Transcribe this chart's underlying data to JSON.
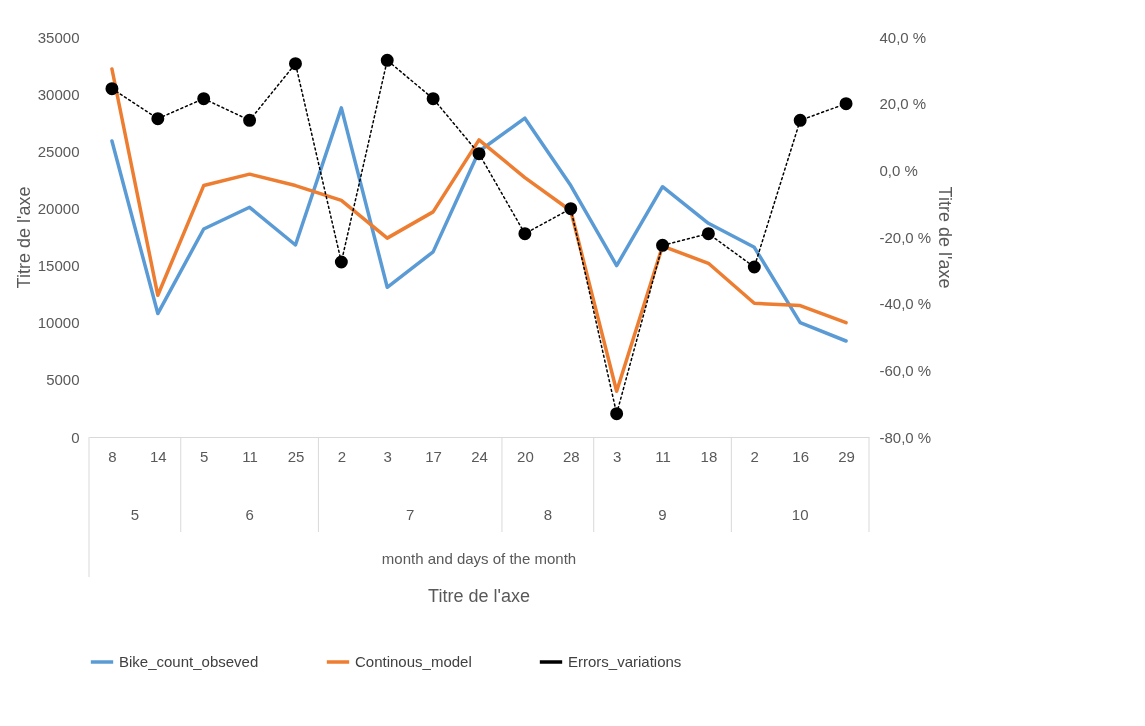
{
  "chart_data": {
    "type": "line",
    "ylabel": "Titre de l'axe",
    "y2label": "Titre de l'axe",
    "categories": [
      "8",
      "14",
      "5",
      "11",
      "25",
      "2",
      "3",
      "17",
      "24",
      "20",
      "28",
      "3",
      "11",
      "18",
      "2",
      "16",
      "29"
    ],
    "annotations": [
      "5",
      "6",
      "7",
      "8",
      "9",
      "10",
      "month and days of the month",
      "Titre de l'axe"
    ],
    "series": [
      {
        "name": "Bike_count_obseved",
        "color": "#5b9bd5",
        "marker": "none",
        "line_style": "solid",
        "values": [
          25900,
          10800,
          18200,
          20100,
          16800,
          28800,
          13100,
          16200,
          25000,
          27900,
          22000,
          15000,
          21900,
          18700,
          16600,
          10000,
          8400
        ]
      },
      {
        "name": "Continous_model",
        "color": "#ed7d31",
        "marker": "none",
        "line_style": "solid",
        "values": [
          32200,
          12400,
          22000,
          23000,
          22000,
          20700,
          17400,
          19700,
          26000,
          22700,
          19800,
          4000,
          16700,
          15200,
          11700,
          11500,
          10000
        ]
      },
      {
        "name": "Errors_variations",
        "color": "#000000",
        "marker": "circle",
        "line_style": "dotted",
        "axis": "y2",
        "values": [
          24.5,
          15.5,
          21.5,
          15,
          32,
          -27.5,
          33,
          21.5,
          5,
          -19,
          -11.5,
          -73,
          -22.5,
          -19,
          -29,
          15,
          20
        ]
      }
    ],
    "ylim": [
      0,
      35000
    ],
    "yticks": [
      0,
      5000,
      10000,
      15000,
      20000,
      25000,
      30000,
      35000
    ],
    "y2lim": [
      -80,
      40
    ],
    "y2ticks": [
      {
        "value": -80,
        "label": "-80,0 %"
      },
      {
        "value": -60,
        "label": "-60,0 %"
      },
      {
        "value": -40,
        "label": "-40,0 %"
      },
      {
        "value": -20,
        "label": "-20,0 %"
      },
      {
        "value": 0,
        "label": "0,0 %"
      },
      {
        "value": 20,
        "label": "20,0 %"
      },
      {
        "value": 40,
        "label": "40,0 %"
      }
    ],
    "grid": false,
    "legend": "bottom"
  }
}
